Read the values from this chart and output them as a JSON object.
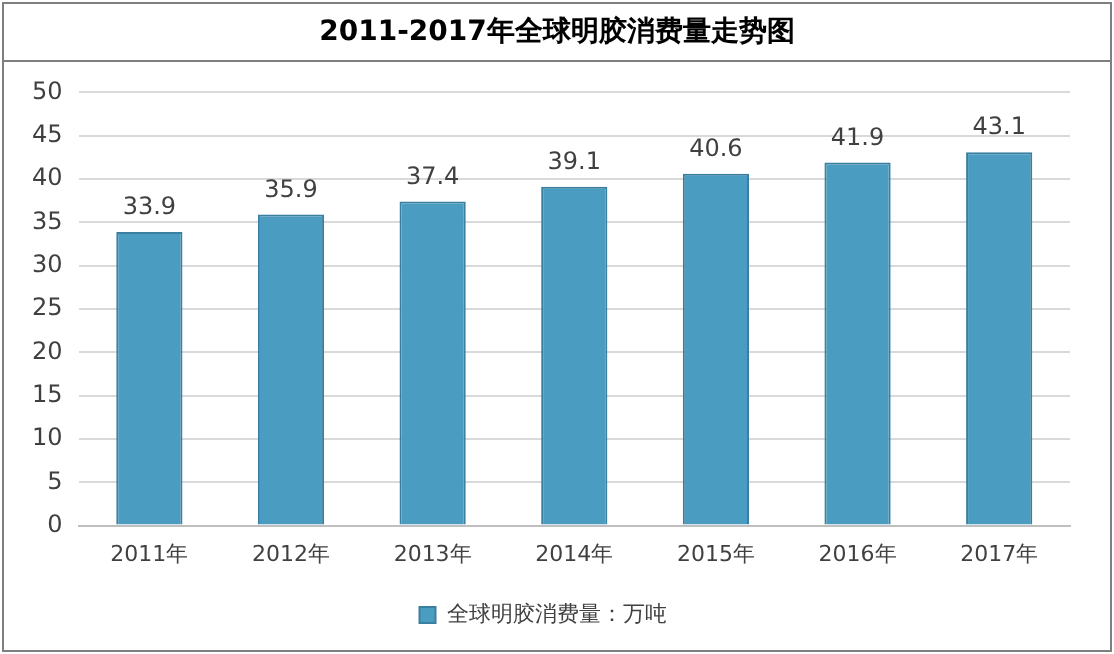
{
  "chart_data": {
    "type": "bar",
    "title": "2011-2017年全球明胶消费量走势图",
    "categories": [
      "2011年",
      "2012年",
      "2013年",
      "2014年",
      "2015年",
      "2016年",
      "2017年"
    ],
    "series": [
      {
        "name": "全球明胶消费量：万吨",
        "color": "#4a9cc0",
        "values": [
          33.9,
          35.9,
          37.4,
          39.1,
          40.6,
          41.9,
          43.1
        ]
      }
    ],
    "ylim": [
      0,
      50
    ],
    "yticks": [
      0,
      5,
      10,
      15,
      20,
      25,
      30,
      35,
      40,
      45,
      50
    ],
    "grid": "y",
    "legend": "bottom",
    "data_labels": true
  }
}
